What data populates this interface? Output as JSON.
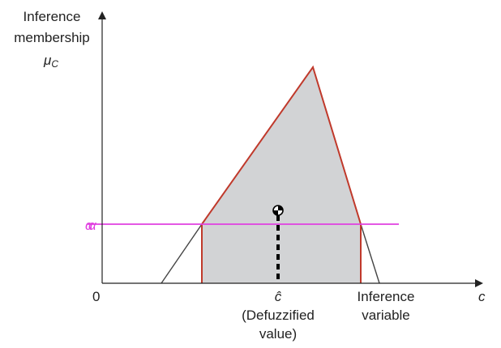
{
  "y_axis": {
    "title_line1": "Inference",
    "title_line2": "membership",
    "symbol": "μ",
    "symbol_sub": "C"
  },
  "x_axis": {
    "origin": "0",
    "symbol": "c",
    "variable_line1": "Inference",
    "variable_line2": "variable"
  },
  "centroid": {
    "symbol": "ĉ",
    "caption_line1": "(Defuzzified",
    "caption_line2": "value)"
  },
  "alpha_label": "α",
  "colors": {
    "axis": "#222222",
    "region_fill": "#d2d3d5",
    "outline": "#c0392b",
    "alpha_line": "#e040e0",
    "triangle": "#444444",
    "centroid_line": "#000000"
  }
}
